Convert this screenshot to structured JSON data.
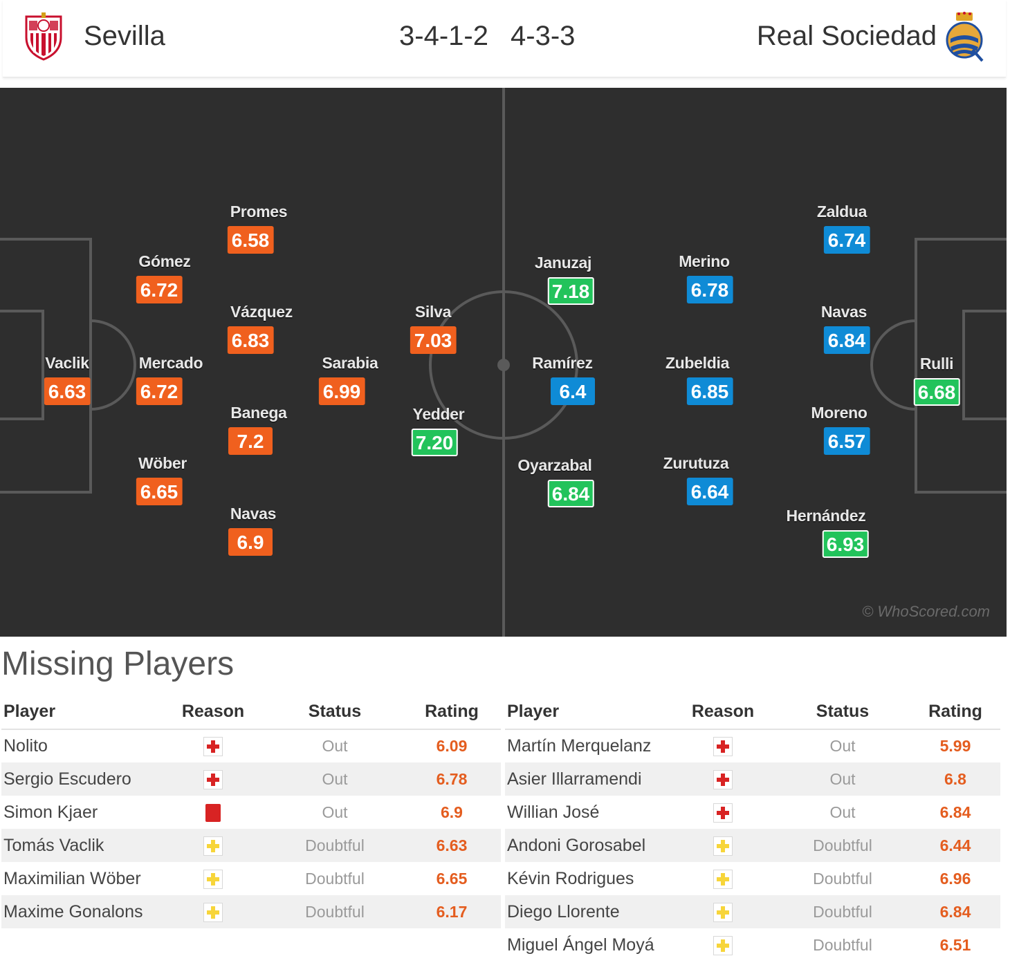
{
  "header": {
    "home_team": "Sevilla",
    "away_team": "Real Sociedad",
    "home_formation": "3-4-1-2",
    "away_formation": "4-3-3"
  },
  "colors": {
    "pitch": "#2e2e2e",
    "rating_home": "#f0601e",
    "rating_away": "#0f8bd6",
    "rating_top": "#22c35b",
    "injury": "#d82323",
    "doubtful": "#f7d53a"
  },
  "home_players": [
    {
      "name": "Vaclik",
      "rating": "6.63",
      "style": "orange"
    },
    {
      "name": "Gómez",
      "rating": "6.72",
      "style": "orange"
    },
    {
      "name": "Mercado",
      "rating": "6.72",
      "style": "orange"
    },
    {
      "name": "Wöber",
      "rating": "6.65",
      "style": "orange"
    },
    {
      "name": "Promes",
      "rating": "6.58",
      "style": "orange"
    },
    {
      "name": "Vázquez",
      "rating": "6.83",
      "style": "orange"
    },
    {
      "name": "Banega",
      "rating": "7.2",
      "style": "orange"
    },
    {
      "name": "Navas",
      "rating": "6.9",
      "style": "orange"
    },
    {
      "name": "Sarabia",
      "rating": "6.99",
      "style": "orange"
    },
    {
      "name": "Silva",
      "rating": "7.03",
      "style": "orange"
    },
    {
      "name": "Yedder",
      "rating": "7.20",
      "style": "green"
    }
  ],
  "away_players": [
    {
      "name": "Rulli",
      "rating": "6.68",
      "style": "green"
    },
    {
      "name": "Zaldua",
      "rating": "6.74",
      "style": "blue"
    },
    {
      "name": "Navas",
      "rating": "6.84",
      "style": "blue"
    },
    {
      "name": "Moreno",
      "rating": "6.57",
      "style": "blue"
    },
    {
      "name": "Hernández",
      "rating": "6.93",
      "style": "green"
    },
    {
      "name": "Merino",
      "rating": "6.78",
      "style": "blue"
    },
    {
      "name": "Zubeldia",
      "rating": "6.85",
      "style": "blue"
    },
    {
      "name": "Zurutuza",
      "rating": "6.64",
      "style": "blue"
    },
    {
      "name": "Januzaj",
      "rating": "7.18",
      "style": "green"
    },
    {
      "name": "Ramírez",
      "rating": "6.4",
      "style": "blue"
    },
    {
      "name": "Oyarzabal",
      "rating": "6.84",
      "style": "green"
    }
  ],
  "watermark": "© WhoScored.com",
  "missing": {
    "title": "Missing Players",
    "headers": {
      "player": "Player",
      "reason": "Reason",
      "status": "Status",
      "rating": "Rating"
    },
    "home": [
      {
        "player": "Nolito",
        "reason": "injury",
        "status": "Out",
        "rating": "6.09"
      },
      {
        "player": "Sergio Escudero",
        "reason": "injury",
        "status": "Out",
        "rating": "6.78"
      },
      {
        "player": "Simon Kjaer",
        "reason": "red-card",
        "status": "Out",
        "rating": "6.9"
      },
      {
        "player": "Tomás Vaclik",
        "reason": "doubtful",
        "status": "Doubtful",
        "rating": "6.63"
      },
      {
        "player": "Maximilian Wöber",
        "reason": "doubtful",
        "status": "Doubtful",
        "rating": "6.65"
      },
      {
        "player": "Maxime Gonalons",
        "reason": "doubtful",
        "status": "Doubtful",
        "rating": "6.17"
      }
    ],
    "away": [
      {
        "player": "Martín Merquelanz",
        "reason": "injury",
        "status": "Out",
        "rating": "5.99"
      },
      {
        "player": "Asier Illarramendi",
        "reason": "injury",
        "status": "Out",
        "rating": "6.8"
      },
      {
        "player": "Willian José",
        "reason": "injury",
        "status": "Out",
        "rating": "6.84"
      },
      {
        "player": "Andoni Gorosabel",
        "reason": "doubtful",
        "status": "Doubtful",
        "rating": "6.44"
      },
      {
        "player": "Kévin Rodrigues",
        "reason": "doubtful",
        "status": "Doubtful",
        "rating": "6.96"
      },
      {
        "player": "Diego Llorente",
        "reason": "doubtful",
        "status": "Doubtful",
        "rating": "6.84"
      },
      {
        "player": "Miguel Ángel Moyá",
        "reason": "doubtful",
        "status": "Doubtful",
        "rating": "6.51"
      }
    ]
  }
}
